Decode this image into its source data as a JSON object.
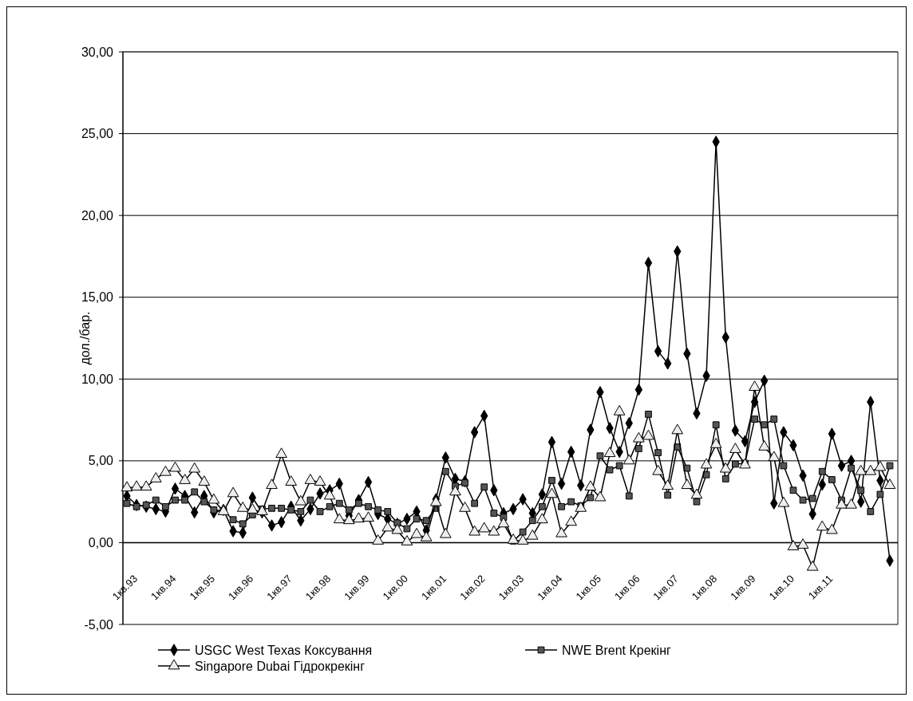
{
  "chart_data": {
    "type": "line",
    "ylabel": "дол./бар.",
    "categories": [
      "1кв.93",
      null,
      null,
      null,
      "1кв.94",
      null,
      null,
      null,
      "1кв.95",
      null,
      null,
      null,
      "1кв.96",
      null,
      null,
      null,
      "1кв.97",
      null,
      null,
      null,
      "1кв.98",
      null,
      null,
      null,
      "1кв.99",
      null,
      null,
      null,
      "1кв.00",
      null,
      null,
      null,
      "1кв.01",
      null,
      null,
      null,
      "1кв.02",
      null,
      null,
      null,
      "1кв.03",
      null,
      null,
      null,
      "1кв.04",
      null,
      null,
      null,
      "1кв.05",
      null,
      null,
      null,
      "1кв.06",
      null,
      null,
      null,
      "1кв.07",
      null,
      null,
      null,
      "1кв.08",
      null,
      null,
      null,
      "1кв.09",
      null,
      null,
      null,
      "1кв.10",
      null,
      null,
      null,
      "1кв.11",
      null,
      null,
      null,
      null,
      null,
      null,
      null
    ],
    "series": [
      {
        "name": "USGC West Texas Коксування",
        "color": "#000000",
        "marker": "diamond",
        "values": [
          2.85,
          2.3,
          2.2,
          2.05,
          1.9,
          3.3,
          2.85,
          1.85,
          2.85,
          1.85,
          2.0,
          0.7,
          0.6,
          2.75,
          1.85,
          1.05,
          1.25,
          2.2,
          1.35,
          2.05,
          3.0,
          3.2,
          3.6,
          1.65,
          2.6,
          3.7,
          1.75,
          1.45,
          1.15,
          1.45,
          1.9,
          0.75,
          2.65,
          5.2,
          3.9,
          3.75,
          6.75,
          7.75,
          3.2,
          1.8,
          2.05,
          2.65,
          1.8,
          2.95,
          6.15,
          3.6,
          5.55,
          3.5,
          6.9,
          9.2,
          7.0,
          5.55,
          7.3,
          9.35,
          17.1,
          11.7,
          10.95,
          17.8,
          11.55,
          7.9,
          10.2,
          24.5,
          12.55,
          6.85,
          6.2,
          8.6,
          9.9,
          2.4,
          6.75,
          5.95,
          4.1,
          1.75,
          3.55,
          6.65,
          4.7,
          5.0,
          2.5,
          8.6,
          3.8,
          -1.1
        ]
      },
      {
        "name": "NWE Brent Крекінг",
        "color": "#555555",
        "marker": "square",
        "values": [
          2.4,
          2.2,
          2.3,
          2.6,
          2.2,
          2.6,
          2.6,
          3.1,
          2.5,
          2.0,
          1.95,
          1.4,
          1.15,
          1.7,
          2.05,
          2.1,
          2.1,
          2.0,
          1.9,
          2.6,
          1.9,
          2.2,
          2.4,
          2.0,
          2.4,
          2.2,
          2.0,
          1.9,
          1.2,
          0.85,
          1.45,
          1.35,
          2.1,
          4.35,
          3.45,
          3.65,
          2.4,
          3.4,
          1.8,
          1.55,
          0.1,
          0.65,
          1.35,
          2.2,
          3.8,
          2.2,
          2.5,
          2.25,
          2.75,
          5.3,
          4.45,
          4.7,
          2.85,
          5.75,
          7.85,
          5.5,
          2.9,
          5.85,
          4.55,
          2.5,
          4.15,
          7.2,
          3.9,
          4.8,
          4.85,
          7.55,
          7.2,
          7.55,
          4.7,
          3.2,
          2.6,
          2.7,
          4.35,
          3.85,
          2.6,
          4.55,
          3.2,
          1.9,
          2.95,
          4.7
        ]
      },
      {
        "name": "Singapore Dubai Гідрокрекінг",
        "color": "#eeeeee",
        "marker": "triangle",
        "values": [
          3.35,
          3.4,
          3.4,
          3.9,
          4.3,
          4.55,
          3.8,
          4.5,
          3.7,
          2.6,
          1.9,
          3.0,
          2.1,
          2.0,
          1.9,
          3.5,
          5.4,
          3.7,
          2.5,
          3.8,
          3.7,
          2.85,
          1.4,
          1.35,
          1.45,
          1.5,
          0.1,
          0.9,
          0.75,
          0.05,
          0.5,
          0.3,
          2.45,
          0.5,
          3.1,
          2.1,
          0.65,
          0.85,
          0.65,
          1.15,
          0.15,
          0.1,
          0.4,
          1.4,
          2.95,
          0.55,
          1.25,
          2.1,
          3.4,
          2.75,
          5.45,
          8.0,
          5.0,
          6.35,
          6.5,
          4.35,
          3.45,
          6.85,
          3.5,
          2.9,
          4.75,
          6.0,
          4.5,
          5.7,
          4.75,
          9.5,
          5.85,
          5.2,
          2.4,
          -0.25,
          -0.15,
          -1.5,
          0.95,
          0.75,
          2.3,
          2.3,
          4.35,
          4.35,
          4.6,
          3.5
        ]
      }
    ],
    "ylim": [
      -5,
      30
    ],
    "yticks": [
      {
        "value": -5,
        "label": "-5,00"
      },
      {
        "value": 0,
        "label": "0,00"
      },
      {
        "value": 5,
        "label": "5,00"
      },
      {
        "value": 10,
        "label": "10,00"
      },
      {
        "value": 15,
        "label": "15,00"
      },
      {
        "value": 20,
        "label": "20,00"
      },
      {
        "value": 25,
        "label": "25,00"
      },
      {
        "value": 30,
        "label": "30,00"
      }
    ],
    "grid": "y",
    "legend": "bottom",
    "line_style": "solid"
  }
}
